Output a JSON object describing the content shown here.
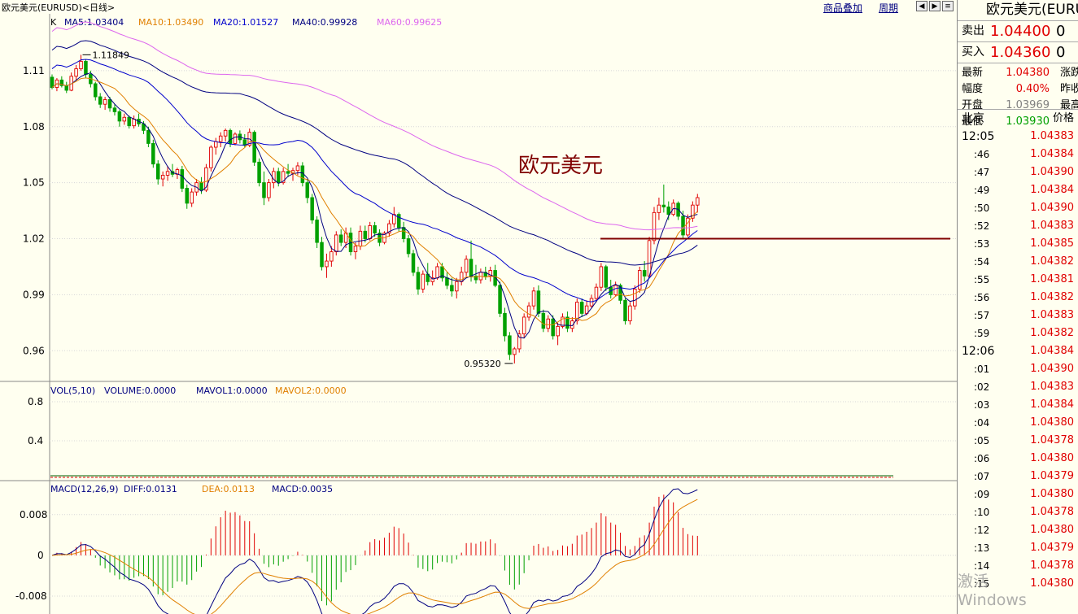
{
  "header": {
    "title": "欧元美元(EURUSD)<日线>",
    "link_overlay": "商品叠加",
    "link_period": "周期"
  },
  "chart_data": [
    {
      "type": "candlestick",
      "panel": "price",
      "indicator_label": "K",
      "ma_legend": [
        {
          "text": "MA5:1.03404",
          "color": "#000080"
        },
        {
          "text": "MA10:1.03490",
          "color": "#e08000"
        },
        {
          "text": "MA20:1.01527",
          "color": "#0000cc"
        },
        {
          "text": "MA40:0.99928",
          "color": "#000080"
        },
        {
          "text": "MA60:0.99625",
          "color": "#dd66ee"
        }
      ],
      "y_ticks": [
        "1.11",
        "1.08",
        "1.05",
        "1.02",
        "0.99",
        "0.96"
      ],
      "ylim": [
        0.944,
        1.14
      ],
      "annotations": {
        "high_label": "1.11849",
        "low_label": "0.95320",
        "center_title": "欧元美元"
      },
      "candles": [
        [
          1.1065,
          1.108,
          1.1,
          1.101
        ],
        [
          1.101,
          1.106,
          1.099,
          1.105
        ],
        [
          1.105,
          1.107,
          1.101,
          1.102
        ],
        [
          1.102,
          1.104,
          1.098,
          1.0995
        ],
        [
          1.0995,
          1.109,
          1.099,
          1.107
        ],
        [
          1.107,
          1.113,
          1.105,
          1.111
        ],
        [
          1.111,
          1.1185,
          1.11,
          1.115
        ],
        [
          1.115,
          1.116,
          1.106,
          1.108
        ],
        [
          1.108,
          1.11,
          1.101,
          1.103
        ],
        [
          1.103,
          1.104,
          1.094,
          1.096
        ],
        [
          1.096,
          1.098,
          1.09,
          1.092
        ],
        [
          1.092,
          1.096,
          1.089,
          1.0945
        ],
        [
          1.0945,
          1.096,
          1.088,
          1.09
        ],
        [
          1.09,
          1.092,
          1.086,
          1.088
        ],
        [
          1.088,
          1.089,
          1.08,
          1.083
        ],
        [
          1.083,
          1.087,
          1.081,
          1.085
        ],
        [
          1.085,
          1.086,
          1.079,
          1.0805
        ],
        [
          1.0805,
          1.086,
          1.079,
          1.084
        ],
        [
          1.084,
          1.087,
          1.08,
          1.0815
        ],
        [
          1.0815,
          1.083,
          1.076,
          1.078
        ],
        [
          1.078,
          1.08,
          1.069,
          1.071
        ],
        [
          1.071,
          1.073,
          1.058,
          1.06
        ],
        [
          1.06,
          1.062,
          1.049,
          1.052
        ],
        [
          1.052,
          1.056,
          1.048,
          1.054
        ],
        [
          1.054,
          1.059,
          1.051,
          1.056
        ],
        [
          1.056,
          1.06,
          1.053,
          1.0545
        ],
        [
          1.0545,
          1.058,
          1.052,
          1.057
        ],
        [
          1.057,
          1.059,
          1.045,
          1.047
        ],
        [
          1.047,
          1.049,
          1.036,
          1.039
        ],
        [
          1.039,
          1.047,
          1.037,
          1.045
        ],
        [
          1.045,
          1.052,
          1.043,
          1.05
        ],
        [
          1.05,
          1.053,
          1.044,
          1.046
        ],
        [
          1.046,
          1.06,
          1.045,
          1.058
        ],
        [
          1.058,
          1.07,
          1.056,
          1.069
        ],
        [
          1.069,
          1.074,
          1.065,
          1.072
        ],
        [
          1.072,
          1.077,
          1.069,
          1.075
        ],
        [
          1.075,
          1.079,
          1.072,
          1.078
        ],
        [
          1.078,
          1.079,
          1.069,
          1.071
        ],
        [
          1.071,
          1.077,
          1.07,
          1.076
        ],
        [
          1.076,
          1.078,
          1.071,
          1.073
        ],
        [
          1.073,
          1.076,
          1.069,
          1.07
        ],
        [
          1.07,
          1.079,
          1.069,
          1.077
        ],
        [
          1.077,
          1.078,
          1.059,
          1.061
        ],
        [
          1.061,
          1.063,
          1.048,
          1.05
        ],
        [
          1.05,
          1.056,
          1.038,
          1.042
        ],
        [
          1.042,
          1.052,
          1.04,
          1.05
        ],
        [
          1.05,
          1.058,
          1.047,
          1.056
        ],
        [
          1.056,
          1.058,
          1.048,
          1.05
        ],
        [
          1.05,
          1.058,
          1.049,
          1.056
        ],
        [
          1.056,
          1.06,
          1.053,
          1.055
        ],
        [
          1.055,
          1.058,
          1.051,
          1.0565
        ],
        [
          1.0565,
          1.061,
          1.054,
          1.059
        ],
        [
          1.059,
          1.061,
          1.048,
          1.05
        ],
        [
          1.05,
          1.052,
          1.039,
          1.042
        ],
        [
          1.042,
          1.044,
          1.028,
          1.03
        ],
        [
          1.03,
          1.032,
          1.015,
          1.018
        ],
        [
          1.018,
          1.021,
          1.003,
          1.005
        ],
        [
          1.005,
          1.012,
          0.999,
          1.008
        ],
        [
          1.008,
          1.016,
          1.005,
          1.013
        ],
        [
          1.013,
          1.024,
          1.011,
          1.022
        ],
        [
          1.022,
          1.025,
          1.016,
          1.018
        ],
        [
          1.018,
          1.026,
          1.015,
          1.023
        ],
        [
          1.023,
          1.026,
          1.011,
          1.013
        ],
        [
          1.013,
          1.018,
          1.009,
          1.016
        ],
        [
          1.016,
          1.027,
          1.014,
          1.024
        ],
        [
          1.024,
          1.027,
          1.018,
          1.02
        ],
        [
          1.02,
          1.029,
          1.019,
          1.027
        ],
        [
          1.027,
          1.029,
          1.021,
          1.023
        ],
        [
          1.023,
          1.025,
          1.016,
          1.018
        ],
        [
          1.018,
          1.024,
          1.017,
          1.023
        ],
        [
          1.023,
          1.03,
          1.021,
          1.028
        ],
        [
          1.028,
          1.037,
          1.026,
          1.033
        ],
        [
          1.033,
          1.034,
          1.024,
          1.026
        ],
        [
          1.026,
          1.029,
          1.018,
          1.02
        ],
        [
          1.02,
          1.022,
          1.01,
          1.012
        ],
        [
          1.012,
          1.014,
          1.0,
          1.002
        ],
        [
          1.002,
          1.005,
          0.99,
          0.993
        ],
        [
          0.993,
          1.003,
          0.991,
          1.001
        ],
        [
          1.001,
          1.007,
          0.995,
          0.997
        ],
        [
          0.997,
          1.003,
          0.995,
          0.999
        ],
        [
          0.999,
          1.007,
          0.998,
          1.005
        ],
        [
          1.005,
          1.007,
          0.997,
          0.999
        ],
        [
          0.999,
          1.002,
          0.993,
          0.995
        ],
        [
          0.995,
          0.999,
          0.989,
          0.992
        ],
        [
          0.992,
          0.999,
          0.988,
          0.997
        ],
        [
          0.997,
          1.005,
          0.995,
          1.002
        ],
        [
          1.002,
          1.011,
          1.0,
          1.009
        ],
        [
          1.009,
          1.019,
          0.997,
          1.0
        ],
        [
          1.0,
          1.006,
          0.996,
          0.998
        ],
        [
          0.998,
          1.004,
          0.996,
          1.002
        ],
        [
          1.002,
          1.005,
          0.998,
          1.0
        ],
        [
          1.0,
          1.005,
          0.997,
          1.003
        ],
        [
          1.003,
          1.006,
          0.994,
          0.995
        ],
        [
          0.995,
          0.997,
          0.978,
          0.98
        ],
        [
          0.98,
          0.983,
          0.965,
          0.968
        ],
        [
          0.968,
          0.97,
          0.955,
          0.958
        ],
        [
          0.958,
          0.962,
          0.9532,
          0.961
        ],
        [
          0.961,
          0.971,
          0.959,
          0.969
        ],
        [
          0.969,
          0.98,
          0.967,
          0.978
        ],
        [
          0.978,
          0.986,
          0.976,
          0.984
        ],
        [
          0.984,
          0.994,
          0.982,
          0.992
        ],
        [
          0.992,
          0.995,
          0.978,
          0.98
        ],
        [
          0.98,
          0.982,
          0.97,
          0.972
        ],
        [
          0.972,
          0.979,
          0.97,
          0.977
        ],
        [
          0.977,
          0.979,
          0.966,
          0.968
        ],
        [
          0.968,
          0.975,
          0.963,
          0.973
        ],
        [
          0.973,
          0.98,
          0.972,
          0.978
        ],
        [
          0.978,
          0.981,
          0.97,
          0.972
        ],
        [
          0.972,
          0.978,
          0.97,
          0.976
        ],
        [
          0.976,
          0.988,
          0.974,
          0.986
        ],
        [
          0.986,
          0.988,
          0.978,
          0.98
        ],
        [
          0.98,
          0.987,
          0.979,
          0.984
        ],
        [
          0.984,
          0.99,
          0.983,
          0.988
        ],
        [
          0.988,
          0.996,
          0.986,
          0.994
        ],
        [
          0.994,
          1.007,
          0.992,
          1.005
        ],
        [
          1.005,
          1.006,
          0.992,
          0.994
        ],
        [
          0.994,
          0.998,
          0.988,
          0.99
        ],
        [
          0.99,
          0.997,
          0.989,
          0.995
        ],
        [
          0.995,
          0.996,
          0.985,
          0.987
        ],
        [
          0.987,
          0.988,
          0.974,
          0.976
        ],
        [
          0.976,
          0.986,
          0.974,
          0.984
        ],
        [
          0.984,
          0.995,
          0.982,
          0.993
        ],
        [
          0.993,
          1.005,
          0.991,
          1.003
        ],
        [
          1.003,
          1.008,
          0.997,
          1.0
        ],
        [
          1.0,
          1.021,
          0.999,
          1.019
        ],
        [
          1.019,
          1.037,
          1.017,
          1.034
        ],
        [
          1.034,
          1.042,
          1.03,
          1.038
        ],
        [
          1.038,
          1.049,
          1.034,
          1.037
        ],
        [
          1.037,
          1.04,
          1.03,
          1.033
        ],
        [
          1.033,
          1.041,
          1.032,
          1.039
        ],
        [
          1.039,
          1.04,
          1.03,
          1.032
        ],
        [
          1.032,
          1.035,
          1.02,
          1.022
        ],
        [
          1.022,
          1.033,
          1.021,
          1.031
        ],
        [
          1.031,
          1.04,
          1.029,
          1.038
        ],
        [
          1.038,
          1.044,
          1.034,
          1.042
        ]
      ],
      "resistance_level": 1.02
    },
    {
      "type": "bar",
      "panel": "volume",
      "legend": [
        {
          "text": "VOL(5,10)",
          "color": "#000080"
        },
        {
          "text": "VOLUME:0.0000",
          "color": "#000080"
        },
        {
          "text": "MAVOL1:0.0000",
          "color": "#000080"
        },
        {
          "text": "MAVOL2:0.0000",
          "color": "#e08000"
        }
      ],
      "y_ticks": [
        "0.8",
        "0.4"
      ],
      "ylim": [
        0,
        1.0
      ],
      "values": "all 0.0000"
    },
    {
      "type": "bar",
      "panel": "macd",
      "legend": [
        {
          "text": "MACD(12,26,9)",
          "color": "#000080"
        },
        {
          "text": "DIFF:0.0131",
          "color": "#000080"
        },
        {
          "text": "DEA:0.0113",
          "color": "#e08000"
        },
        {
          "text": "MACD:0.0035",
          "color": "#000080"
        }
      ],
      "y_ticks": [
        "0.008",
        "0",
        "-0.008"
      ],
      "ylim": [
        -0.0115,
        0.0145
      ]
    }
  ],
  "quote": {
    "name": "欧元美元(EURUSD)",
    "sell_label": "卖出",
    "sell_price": "1.04400",
    "sell_zero": "0",
    "buy_label": "买入",
    "buy_price": "1.04360",
    "buy_zero": "0",
    "stats": [
      {
        "label": "最新",
        "value": "1.04380",
        "color": "#e00000",
        "label2": "涨跌"
      },
      {
        "label": "幅度",
        "value": "0.40%",
        "color": "#e00000",
        "label2": "昨收"
      },
      {
        "label": "开盘",
        "value": "1.03969",
        "color": "#808080",
        "label2": "最高"
      },
      {
        "label": "最低",
        "value": "1.03930",
        "color": "#00a000",
        "label2": ""
      }
    ],
    "tick_header_time": "北京",
    "tick_header_price": "价格",
    "ticks": [
      {
        "time": "12:05",
        "price": "1.04383",
        "full": true
      },
      {
        "time": ":46",
        "price": "1.04384"
      },
      {
        "time": ":47",
        "price": "1.04390"
      },
      {
        "time": ":49",
        "price": "1.04384"
      },
      {
        "time": ":50",
        "price": "1.04390"
      },
      {
        "time": ":52",
        "price": "1.04383"
      },
      {
        "time": ":53",
        "price": "1.04385"
      },
      {
        "time": ":54",
        "price": "1.04382"
      },
      {
        "time": ":55",
        "price": "1.04381"
      },
      {
        "time": ":56",
        "price": "1.04382"
      },
      {
        "time": ":57",
        "price": "1.04383"
      },
      {
        "time": ":59",
        "price": "1.04382"
      },
      {
        "time": "12:06",
        "price": "1.04384",
        "full": true
      },
      {
        "time": ":01",
        "price": "1.04390"
      },
      {
        "time": ":02",
        "price": "1.04383"
      },
      {
        "time": ":03",
        "price": "1.04384"
      },
      {
        "time": ":04",
        "price": "1.04380"
      },
      {
        "time": ":05",
        "price": "1.04378"
      },
      {
        "time": ":06",
        "price": "1.04380"
      },
      {
        "time": ":07",
        "price": "1.04379"
      },
      {
        "time": ":09",
        "price": "1.04380"
      },
      {
        "time": ":10",
        "price": "1.04378"
      },
      {
        "time": ":12",
        "price": "1.04380"
      },
      {
        "time": ":13",
        "price": "1.04379"
      },
      {
        "time": ":14",
        "price": "1.04378"
      },
      {
        "time": ":15",
        "price": "1.04380"
      }
    ]
  },
  "watermark": "激活 Windows",
  "colors": {
    "up": "#e00000",
    "down": "#00a000",
    "background": "#fffff0",
    "resistance": "#800000"
  }
}
